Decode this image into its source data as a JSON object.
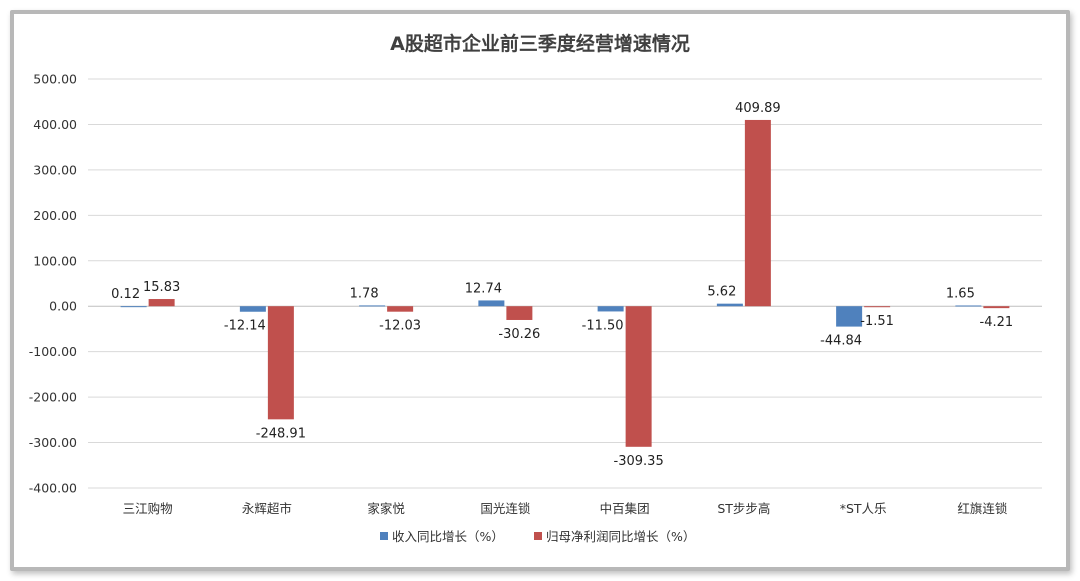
{
  "chart_data": {
    "type": "bar",
    "title": "A股超市企业前三季度经营增速情况",
    "categories": [
      "三江购物",
      "永辉超市",
      "家家悦",
      "国光连锁",
      "中百集团",
      "ST步步高",
      "*ST人乐",
      "红旗连锁"
    ],
    "series": [
      {
        "name": "收入同比增长（%）",
        "color": "#4f81bd",
        "values": [
          0.12,
          -12.14,
          1.78,
          12.74,
          -11.5,
          5.62,
          -44.84,
          1.65
        ],
        "labels": [
          "0.12",
          "-12.14",
          "1.78",
          "12.74",
          "-11.50",
          "5.62",
          "-44.84",
          "1.65"
        ]
      },
      {
        "name": "归母净利润同比增长（%）",
        "color": "#c0504d",
        "values": [
          15.83,
          -248.91,
          -12.03,
          -30.26,
          -309.35,
          409.89,
          -1.51,
          -4.21
        ],
        "labels": [
          "15.83",
          "-248.91",
          "-12.03",
          "-30.26",
          "-309.35",
          "409.89",
          "-1.51",
          "-4.21"
        ]
      }
    ],
    "ylim": [
      -400,
      500
    ],
    "yticks": [
      "500.00",
      "400.00",
      "300.00",
      "200.00",
      "100.00",
      "0.00",
      "-100.00",
      "-200.00",
      "-300.00",
      "-400.00"
    ],
    "ytick_values": [
      500,
      400,
      300,
      200,
      100,
      0,
      -100,
      -200,
      -300,
      -400
    ],
    "grid": true,
    "legend_position": "bottom"
  }
}
